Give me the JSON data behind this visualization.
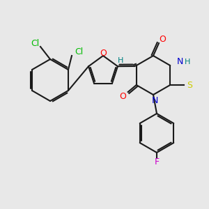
{
  "background_color": "#e8e8e8",
  "bond_color": "#1a1a1a",
  "lw": 1.5,
  "atom_colors": {
    "O": "#ff0000",
    "N": "#0000cc",
    "S": "#cccc00",
    "F": "#cc00cc",
    "Cl": "#00bb00",
    "H": "#008080",
    "C": "#1a1a1a"
  },
  "font_size": 8.5
}
